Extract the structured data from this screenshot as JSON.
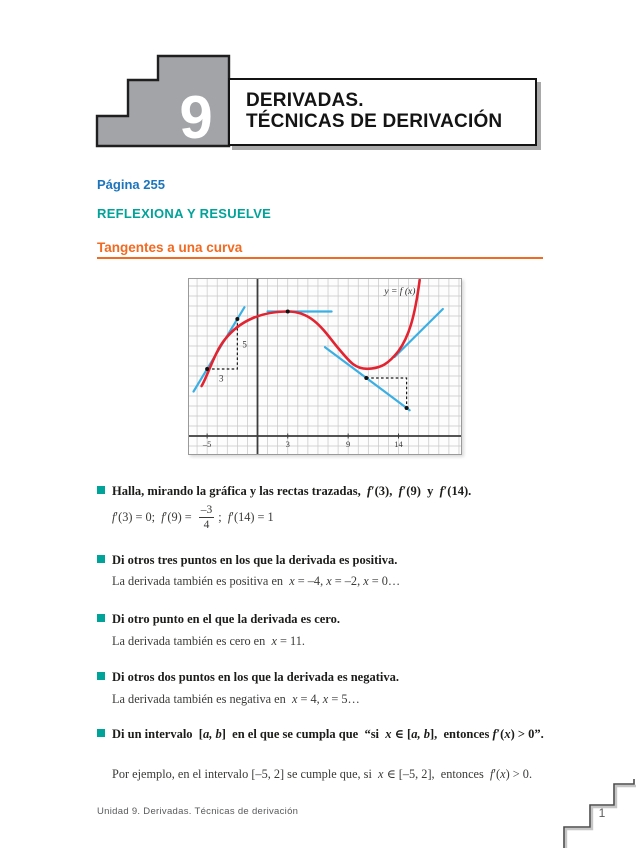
{
  "header": {
    "unit_number": "9",
    "title_line1": "DERIVADAS.",
    "title_line2": "TÉCNICAS DE DERIVACIÓN"
  },
  "headings": {
    "page_label": "Página 255",
    "section": "REFLEXIONA Y RESUELVE",
    "subsection": "Tangentes a una curva"
  },
  "colors": {
    "page_label_blue": "#1c75bc",
    "section_teal": "#00a39a",
    "subsection_orange": "#f26a21",
    "bullet_teal": "#00a39a"
  },
  "chart_data": {
    "type": "line",
    "title": "",
    "xlabel": "",
    "ylabel": "",
    "grid": true,
    "curve_label": "y = f (x)",
    "curve_label_at": [
      12.6,
      14.2
    ],
    "bounds": {
      "x_min": -6.9,
      "x_max": 20.3,
      "y_min": -1.9,
      "y_max": 15.8
    },
    "x_ticks": [
      {
        "value": -5,
        "label": "–5"
      },
      {
        "value": 3,
        "label": "3"
      },
      {
        "value": 9,
        "label": "9"
      },
      {
        "value": 14,
        "label": "14"
      }
    ],
    "curve_points_sampled": [
      [
        -5.5,
        5.2
      ],
      [
        -5,
        6.7
      ],
      [
        -3,
        10
      ],
      [
        0,
        11.9
      ],
      [
        3,
        12.45
      ],
      [
        6,
        11.3
      ],
      [
        8,
        8.8
      ],
      [
        10.9,
        6.7
      ],
      [
        13,
        7.4
      ],
      [
        14,
        8.5
      ],
      [
        15,
        10.3
      ],
      [
        16.1,
        15.6
      ]
    ],
    "curve_path": [
      {
        "m": [
          -5.55,
          5.0
        ]
      },
      {
        "c": [
          -4.95,
          6.0,
          -4.25,
          8.45,
          -3.2,
          9.7
        ]
      },
      {
        "c": [
          -1.7,
          11.6,
          0.5,
          12.45,
          3.0,
          12.45
        ]
      },
      {
        "c": [
          5.5,
          12.45,
          6.6,
          10.5,
          8.0,
          8.8
        ]
      },
      {
        "c": [
          9.2,
          7.35,
          9.7,
          6.72,
          10.9,
          6.72
        ]
      },
      {
        "c": [
          12.3,
          6.72,
          13.1,
          7.35,
          14.0,
          8.5
        ]
      },
      {
        "c": [
          15.0,
          9.9,
          15.6,
          11.8,
          16.1,
          15.6
        ]
      }
    ],
    "tangents": [
      {
        "touch_x": -5,
        "touch_y": 6.7,
        "slope": 1.667,
        "slope_frac": "5/3",
        "x1": -6.35,
        "y1": 4.45,
        "x2": -1.3,
        "y2": 12.87
      },
      {
        "touch_x": 3,
        "touch_y": 12.45,
        "slope": 0,
        "x1": 1.0,
        "y1": 12.45,
        "x2": 7.35,
        "y2": 12.45
      },
      {
        "touch_x": 9,
        "touch_y": 7.2,
        "slope": -0.75,
        "slope_frac": "-3/4",
        "x1": 6.7,
        "y1": 8.88,
        "x2": 15.1,
        "y2": 2.58
      },
      {
        "touch_x": 14,
        "touch_y": 8.3,
        "slope": 1,
        "x1": 13.6,
        "y1": 7.9,
        "x2": 18.4,
        "y2": 12.7
      }
    ],
    "dashed_triangles": [
      {
        "points": [
          [
            -5,
            6.7
          ],
          [
            -2,
            6.7
          ],
          [
            -2,
            11.7
          ]
        ],
        "run_label": "3",
        "rise_label": "5",
        "run_label_at": [
          -3.6,
          5.45
        ],
        "rise_label_at": [
          -1.5,
          8.85
        ]
      },
      {
        "points": [
          [
            10.8,
            5.8
          ],
          [
            14.8,
            5.8
          ],
          [
            14.8,
            2.8
          ]
        ]
      }
    ],
    "dots": [
      [
        -5,
        6.7
      ],
      [
        -2,
        11.7
      ],
      [
        3,
        12.45
      ],
      [
        10.8,
        5.8
      ],
      [
        14.8,
        2.8
      ]
    ],
    "derivative_readings": {
      "f_prime_3": 0,
      "f_prime_9": -0.75,
      "f_prime_14": 1
    },
    "colors": {
      "curve": "#e32330",
      "tangent": "#3aafe4",
      "grid": "#c6c6c6",
      "axis": "#3c3c3c",
      "dash": "#1a1a1a",
      "dot": "#111111",
      "frame": "#9a9a9a",
      "tick_text": "#3c3c3c",
      "label_text": "#333333"
    }
  },
  "questions": [
    {
      "prompt": [
        {
          "t": "Halla, mirando la gráfica y las rectas trazadas,  ",
          "i": false
        },
        {
          "t": "f",
          "i": true
        },
        {
          "t": "′(3),  ",
          "i": false
        },
        {
          "t": "f",
          "i": true
        },
        {
          "t": "′(9)  y  ",
          "i": false
        },
        {
          "t": "f",
          "i": true
        },
        {
          "t": "′(14).",
          "i": false
        }
      ],
      "answer_pre": [
        {
          "t": "f",
          "i": true
        },
        {
          "t": "′(3) = 0;  ",
          "i": false
        },
        {
          "t": "f",
          "i": true
        },
        {
          "t": "′(9) = ",
          "i": false
        }
      ],
      "fraction": {
        "num": "–3",
        "den": "4"
      },
      "answer_post": [
        {
          "t": ";  ",
          "i": false
        },
        {
          "t": "f",
          "i": true
        },
        {
          "t": "′(14) = 1",
          "i": false
        }
      ]
    },
    {
      "prompt": [
        {
          "t": "Di otros tres puntos en los que la derivada es positiva.",
          "i": false
        }
      ],
      "answer": [
        {
          "t": "La derivada también es positiva en  ",
          "i": false
        },
        {
          "t": "x",
          "i": true
        },
        {
          "t": " = –4, ",
          "i": false
        },
        {
          "t": "x",
          "i": true
        },
        {
          "t": " = –2, ",
          "i": false
        },
        {
          "t": "x",
          "i": true
        },
        {
          "t": " = 0…",
          "i": false
        }
      ]
    },
    {
      "prompt": [
        {
          "t": "Di otro punto en el que la derivada es cero.",
          "i": false
        }
      ],
      "answer": [
        {
          "t": "La derivada también es cero en  ",
          "i": false
        },
        {
          "t": "x",
          "i": true
        },
        {
          "t": " = 11.",
          "i": false
        }
      ]
    },
    {
      "prompt": [
        {
          "t": "Di otros dos puntos en los que la derivada es negativa.",
          "i": false
        }
      ],
      "answer": [
        {
          "t": "La derivada también es negativa en  ",
          "i": false
        },
        {
          "t": "x",
          "i": true
        },
        {
          "t": " = 4, ",
          "i": false
        },
        {
          "t": "x",
          "i": true
        },
        {
          "t": " = 5…",
          "i": false
        }
      ]
    },
    {
      "prompt": [
        {
          "t": "Di un intervalo  [",
          "i": false
        },
        {
          "t": "a, b",
          "i": true
        },
        {
          "t": "]  en el que se cumpla que  “si  ",
          "i": false
        },
        {
          "t": "x",
          "i": true
        },
        {
          "t": " ∈ [",
          "i": false
        },
        {
          "t": "a, b",
          "i": true
        },
        {
          "t": "],  entonces ",
          "i": false
        },
        {
          "t": "f",
          "i": true
        },
        {
          "t": "′(",
          "i": false
        },
        {
          "t": "x",
          "i": true
        },
        {
          "t": ") > 0”.",
          "i": false
        }
      ],
      "answer": [
        {
          "t": "Por ejemplo, en el intervalo [–5, 2] se cumple que, si  ",
          "i": false
        },
        {
          "t": "x",
          "i": true
        },
        {
          "t": " ∈ [–5, 2],  entonces  ",
          "i": false
        },
        {
          "t": "f",
          "i": true
        },
        {
          "t": "′(",
          "i": false
        },
        {
          "t": "x",
          "i": true
        },
        {
          "t": ") > 0.",
          "i": false
        }
      ]
    }
  ],
  "footer": {
    "left_text": "Unidad 9. Derivadas. Técnicas de derivación",
    "page_number": "1"
  }
}
